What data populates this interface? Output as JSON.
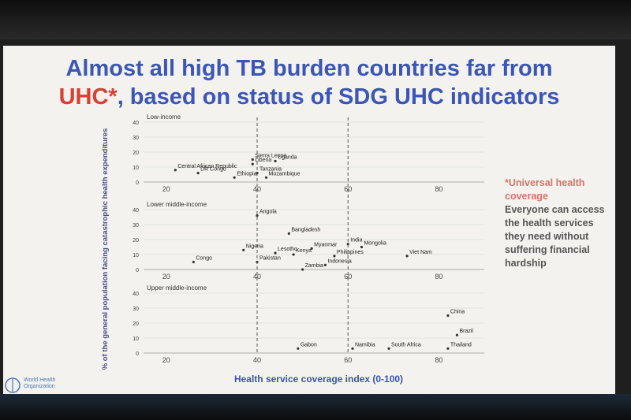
{
  "slide": {
    "title_line1": "Almost all high TB burden countries far from",
    "title_line2_red": "UHC*",
    "title_line2_rest": ", based on status of SDG UHC indicators",
    "note_title": "*Universal health coverage",
    "note_body": "Everyone can access the health services they need without suffering financial hardship",
    "logo_text": "World Health Organization"
  },
  "colors": {
    "title": "#3b56b6",
    "accent_red": "#d94032",
    "note_pink": "#d5746b"
  },
  "chart_data": {
    "type": "scatter",
    "xlabel": "Health service coverage index (0-100)",
    "ylabel": "% of the general population facing catastrophic health expenditures",
    "xticks": [
      20,
      40,
      60,
      80
    ],
    "yticks": [
      0,
      10,
      20,
      30,
      40
    ],
    "xlim": [
      15,
      90
    ],
    "ylim": [
      0,
      40
    ],
    "grid": true,
    "panels": [
      {
        "name": "Low-income",
        "points": [
          {
            "label": "Central African Republic",
            "x": 22,
            "y": 8
          },
          {
            "label": "DR Congo",
            "x": 27,
            "y": 6
          },
          {
            "label": "Ethiopia",
            "x": 35,
            "y": 3
          },
          {
            "label": "Sierra Leone",
            "x": 39,
            "y": 15
          },
          {
            "label": "Liberia",
            "x": 39,
            "y": 12
          },
          {
            "label": "Uganda",
            "x": 44,
            "y": 14
          },
          {
            "label": "Tanzania",
            "x": 40,
            "y": 6
          },
          {
            "label": "Mozambique",
            "x": 42,
            "y": 3
          }
        ]
      },
      {
        "name": "Lower middle-income",
        "points": [
          {
            "label": "Angola",
            "x": 40,
            "y": 36
          },
          {
            "label": "Bangladesh",
            "x": 47,
            "y": 24
          },
          {
            "label": "India",
            "x": 60,
            "y": 17
          },
          {
            "label": "Mongolia",
            "x": 63,
            "y": 15
          },
          {
            "label": "Myanmar",
            "x": 52,
            "y": 14
          },
          {
            "label": "Nigeria",
            "x": 37,
            "y": 13
          },
          {
            "label": "Lesotho",
            "x": 44,
            "y": 11
          },
          {
            "label": "Kenya",
            "x": 48,
            "y": 10
          },
          {
            "label": "Philippines",
            "x": 57,
            "y": 9
          },
          {
            "label": "Viet Nam",
            "x": 73,
            "y": 9
          },
          {
            "label": "Congo",
            "x": 26,
            "y": 5
          },
          {
            "label": "Pakistan",
            "x": 40,
            "y": 5
          },
          {
            "label": "Indonesia",
            "x": 55,
            "y": 3
          },
          {
            "label": "Zambia",
            "x": 50,
            "y": 0
          }
        ]
      },
      {
        "name": "Upper middle-income",
        "points": [
          {
            "label": "China",
            "x": 82,
            "y": 25
          },
          {
            "label": "Brazil",
            "x": 84,
            "y": 12
          },
          {
            "label": "Gabon",
            "x": 49,
            "y": 3
          },
          {
            "label": "Namibia",
            "x": 61,
            "y": 3
          },
          {
            "label": "South Africa",
            "x": 69,
            "y": 3
          },
          {
            "label": "Thailand",
            "x": 82,
            "y": 3
          }
        ]
      }
    ]
  }
}
